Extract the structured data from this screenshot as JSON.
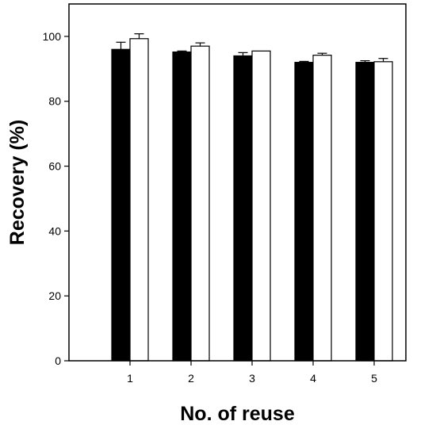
{
  "chart_data": {
    "type": "bar",
    "title": "",
    "xlabel": "No. of reuse",
    "ylabel": "Recovery (%)",
    "ylim": [
      0,
      110
    ],
    "yticks": [
      0,
      20,
      40,
      60,
      80,
      100
    ],
    "categories": [
      "1",
      "2",
      "3",
      "4",
      "5"
    ],
    "series": [
      {
        "color": "#000000",
        "values": [
          96.0,
          95.2,
          94.0,
          92.0,
          92.0
        ],
        "errors": [
          2.2,
          0.3,
          1.0,
          0.3,
          0.5
        ]
      },
      {
        "color": "#ffffff",
        "values": [
          99.3,
          97.0,
          95.5,
          94.2,
          92.2
        ],
        "errors": [
          1.5,
          1.0,
          0.0,
          0.6,
          1.0
        ]
      }
    ],
    "grid": false,
    "legend": "none"
  }
}
